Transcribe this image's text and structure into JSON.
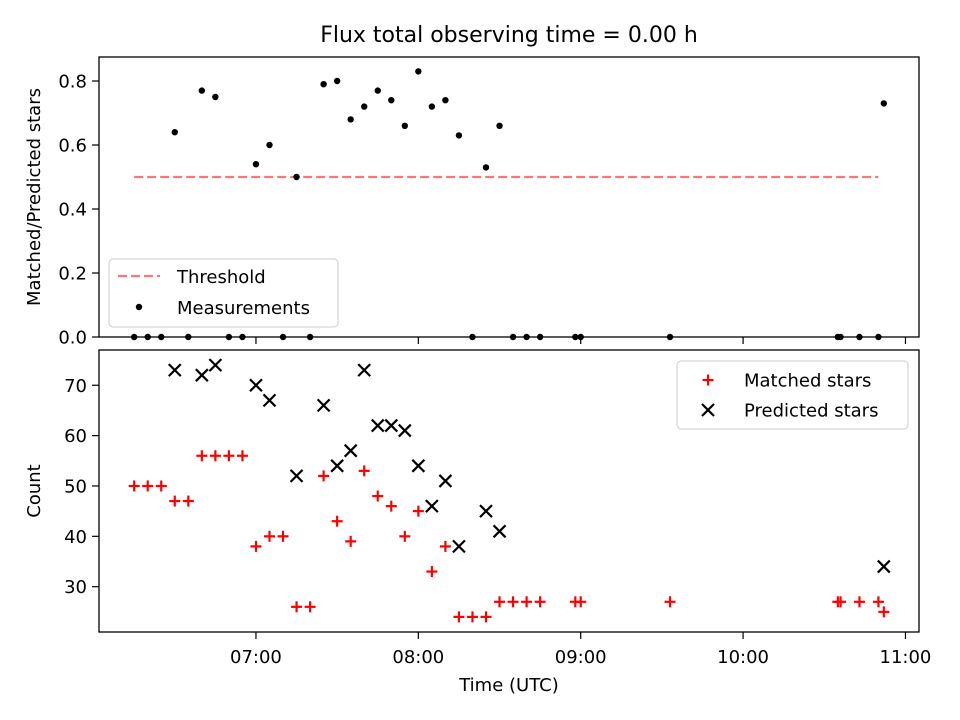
{
  "title": "Flux total observing time = 0.00 h",
  "chart_data": [
    {
      "type": "scatter",
      "panel": "top",
      "title": "Flux total observing time = 0.00 h",
      "ylabel": "Matched/Predicted stars",
      "xlabel": "",
      "xlim": [
        "06:02",
        "11:05"
      ],
      "ylim": [
        0,
        0.875
      ],
      "yticks": [
        0.0,
        0.2,
        0.4,
        0.6,
        0.8
      ],
      "yticklabels": [
        "0.0",
        "0.2",
        "0.4",
        "0.6",
        "0.8"
      ],
      "xticks": [
        "07:00",
        "08:00",
        "09:00",
        "10:00",
        "11:00"
      ],
      "xticklabels_visible": false,
      "legend_placement": "lower-left",
      "threshold": {
        "name": "Threshold",
        "y": 0.5,
        "x_range": [
          "06:15",
          "10:50"
        ],
        "color": "#f87878",
        "style": "dashed"
      },
      "series": [
        {
          "name": "Measurements",
          "color": "#000000",
          "marker": "dot",
          "points": [
            {
              "x": "06:15",
              "y": 0.0
            },
            {
              "x": "06:20",
              "y": 0.0
            },
            {
              "x": "06:25",
              "y": 0.0
            },
            {
              "x": "06:30",
              "y": 0.64
            },
            {
              "x": "06:35",
              "y": 0.0
            },
            {
              "x": "06:40",
              "y": 0.77
            },
            {
              "x": "06:45",
              "y": 0.75
            },
            {
              "x": "06:50",
              "y": 0.0
            },
            {
              "x": "06:55",
              "y": 0.0
            },
            {
              "x": "07:00",
              "y": 0.54
            },
            {
              "x": "07:05",
              "y": 0.6
            },
            {
              "x": "07:10",
              "y": 0.0
            },
            {
              "x": "07:15",
              "y": 0.5
            },
            {
              "x": "07:20",
              "y": 0.0
            },
            {
              "x": "07:25",
              "y": 0.79
            },
            {
              "x": "07:30",
              "y": 0.8
            },
            {
              "x": "07:35",
              "y": 0.68
            },
            {
              "x": "07:40",
              "y": 0.72
            },
            {
              "x": "07:45",
              "y": 0.77
            },
            {
              "x": "07:50",
              "y": 0.74
            },
            {
              "x": "07:55",
              "y": 0.66
            },
            {
              "x": "08:00",
              "y": 0.83
            },
            {
              "x": "08:05",
              "y": 0.72
            },
            {
              "x": "08:10",
              "y": 0.74
            },
            {
              "x": "08:15",
              "y": 0.63
            },
            {
              "x": "08:20",
              "y": 0.0
            },
            {
              "x": "08:25",
              "y": 0.53
            },
            {
              "x": "08:30",
              "y": 0.66
            },
            {
              "x": "08:35",
              "y": 0.0
            },
            {
              "x": "08:40",
              "y": 0.0
            },
            {
              "x": "08:45",
              "y": 0.0
            },
            {
              "x": "08:58",
              "y": 0.0
            },
            {
              "x": "09:00",
              "y": 0.0
            },
            {
              "x": "09:33",
              "y": 0.0
            },
            {
              "x": "10:35",
              "y": 0.0
            },
            {
              "x": "10:36",
              "y": 0.0
            },
            {
              "x": "10:43",
              "y": 0.0
            },
            {
              "x": "10:50",
              "y": 0.0
            },
            {
              "x": "10:52",
              "y": 0.73
            }
          ]
        }
      ]
    },
    {
      "type": "scatter",
      "panel": "bottom",
      "ylabel": "Count",
      "xlabel": "Time (UTC)",
      "xlim": [
        "06:02",
        "11:05"
      ],
      "ylim": [
        21,
        77
      ],
      "yticks": [
        30,
        40,
        50,
        60,
        70
      ],
      "yticklabels": [
        "30",
        "40",
        "50",
        "60",
        "70"
      ],
      "xticks": [
        "07:00",
        "08:00",
        "09:00",
        "10:00",
        "11:00"
      ],
      "xticklabels": [
        "07:00",
        "08:00",
        "09:00",
        "10:00",
        "11:00"
      ],
      "legend_placement": "top-right",
      "series": [
        {
          "name": "Matched stars",
          "color": "#ff0000",
          "marker": "plus",
          "points": [
            {
              "x": "06:15",
              "y": 50
            },
            {
              "x": "06:20",
              "y": 50
            },
            {
              "x": "06:25",
              "y": 50
            },
            {
              "x": "06:30",
              "y": 47
            },
            {
              "x": "06:35",
              "y": 47
            },
            {
              "x": "06:40",
              "y": 56
            },
            {
              "x": "06:45",
              "y": 56
            },
            {
              "x": "06:50",
              "y": 56
            },
            {
              "x": "06:55",
              "y": 56
            },
            {
              "x": "07:00",
              "y": 38
            },
            {
              "x": "07:05",
              "y": 40
            },
            {
              "x": "07:10",
              "y": 40
            },
            {
              "x": "07:15",
              "y": 26
            },
            {
              "x": "07:20",
              "y": 26
            },
            {
              "x": "07:25",
              "y": 52
            },
            {
              "x": "07:30",
              "y": 43
            },
            {
              "x": "07:35",
              "y": 39
            },
            {
              "x": "07:40",
              "y": 53
            },
            {
              "x": "07:45",
              "y": 48
            },
            {
              "x": "07:50",
              "y": 46
            },
            {
              "x": "07:55",
              "y": 40
            },
            {
              "x": "08:00",
              "y": 45
            },
            {
              "x": "08:05",
              "y": 33
            },
            {
              "x": "08:10",
              "y": 38
            },
            {
              "x": "08:15",
              "y": 24
            },
            {
              "x": "08:20",
              "y": 24
            },
            {
              "x": "08:25",
              "y": 24
            },
            {
              "x": "08:30",
              "y": 27
            },
            {
              "x": "08:35",
              "y": 27
            },
            {
              "x": "08:40",
              "y": 27
            },
            {
              "x": "08:45",
              "y": 27
            },
            {
              "x": "08:58",
              "y": 27
            },
            {
              "x": "09:00",
              "y": 27
            },
            {
              "x": "09:33",
              "y": 27
            },
            {
              "x": "10:35",
              "y": 27
            },
            {
              "x": "10:36",
              "y": 27
            },
            {
              "x": "10:43",
              "y": 27
            },
            {
              "x": "10:50",
              "y": 27
            },
            {
              "x": "10:52",
              "y": 25
            }
          ]
        },
        {
          "name": "Predicted stars",
          "color": "#000000",
          "marker": "x",
          "points": [
            {
              "x": "06:30",
              "y": 73
            },
            {
              "x": "06:40",
              "y": 72
            },
            {
              "x": "06:45",
              "y": 74
            },
            {
              "x": "07:00",
              "y": 70
            },
            {
              "x": "07:05",
              "y": 67
            },
            {
              "x": "07:15",
              "y": 52
            },
            {
              "x": "07:25",
              "y": 66
            },
            {
              "x": "07:30",
              "y": 54
            },
            {
              "x": "07:35",
              "y": 57
            },
            {
              "x": "07:40",
              "y": 73
            },
            {
              "x": "07:45",
              "y": 62
            },
            {
              "x": "07:50",
              "y": 62
            },
            {
              "x": "07:55",
              "y": 61
            },
            {
              "x": "08:00",
              "y": 54
            },
            {
              "x": "08:05",
              "y": 46
            },
            {
              "x": "08:10",
              "y": 51
            },
            {
              "x": "08:15",
              "y": 38
            },
            {
              "x": "08:25",
              "y": 45
            },
            {
              "x": "08:30",
              "y": 41
            },
            {
              "x": "10:52",
              "y": 34
            }
          ]
        }
      ]
    }
  ]
}
